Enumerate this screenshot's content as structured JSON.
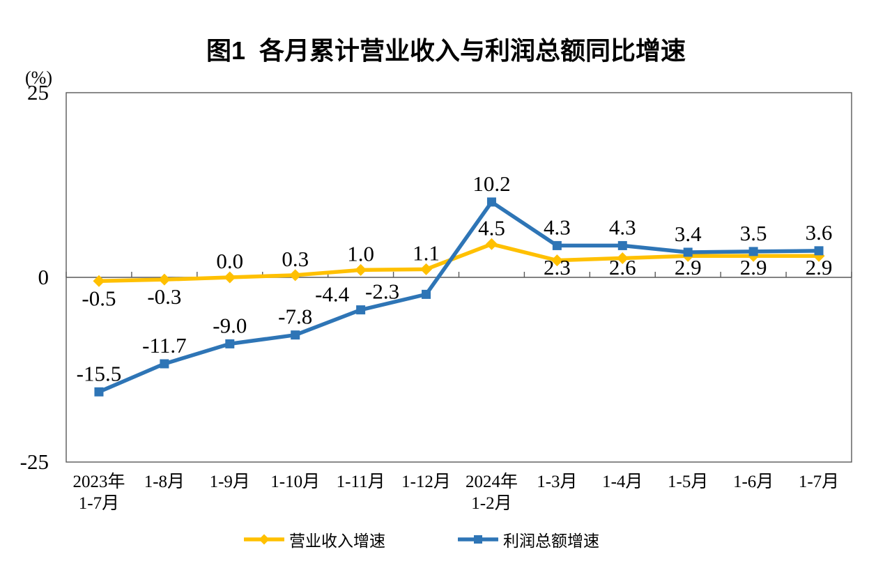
{
  "chart_data": {
    "type": "line",
    "title": "图1  各月累计营业收入与利润总额同比增速",
    "ylabel": "(%)",
    "ylim": [
      -25,
      25
    ],
    "grid": false,
    "legend_position": "bottom",
    "axis_color": "#595959",
    "y_ticks": [
      {
        "value": 25,
        "label": "25"
      },
      {
        "value": 0,
        "label": "0"
      },
      {
        "value": -25,
        "label": "-25"
      }
    ],
    "categories": [
      [
        "2023年",
        "1-7月"
      ],
      [
        "1-8月"
      ],
      [
        "1-9月"
      ],
      [
        "1-10月"
      ],
      [
        "1-11月"
      ],
      [
        "1-12月"
      ],
      [
        "2024年",
        "1-2月"
      ],
      [
        "1-3月"
      ],
      [
        "1-4月"
      ],
      [
        "1-5月"
      ],
      [
        "1-6月"
      ],
      [
        "1-7月"
      ]
    ],
    "series": [
      {
        "name": "营业收入增速",
        "color": "#FFC000",
        "marker": "diamond",
        "values": [
          -0.5,
          -0.3,
          0.0,
          0.3,
          1.0,
          1.1,
          4.5,
          2.3,
          2.6,
          2.9,
          2.9,
          2.9
        ],
        "labels": [
          "-0.5",
          "-0.3",
          "0.0",
          "0.3",
          "1.0",
          "1.1",
          "4.5",
          "2.3",
          "2.6",
          "2.9",
          "2.9",
          "2.9"
        ],
        "label_positions": [
          "below",
          "below",
          "above",
          "above",
          "above",
          "above",
          "above",
          "below",
          "below",
          "below",
          "below",
          "below"
        ],
        "label_offsets": {}
      },
      {
        "name": "利润总额增速",
        "color": "#2E75B6",
        "marker": "square",
        "values": [
          -15.5,
          -11.7,
          -9.0,
          -7.8,
          -4.4,
          -2.3,
          10.2,
          4.3,
          4.3,
          3.4,
          3.5,
          3.6
        ],
        "labels": [
          "-15.5",
          "-11.7",
          "-9.0",
          "-7.8",
          "-4.4",
          "-2.3",
          "10.2",
          "4.3",
          "4.3",
          "3.4",
          "3.5",
          "3.6"
        ],
        "label_positions": [
          "above",
          "above",
          "above",
          "above",
          "above",
          "above",
          "above",
          "above",
          "above",
          "above",
          "above",
          "above"
        ],
        "label_offsets": {
          "4": [
            -41,
            4
          ],
          "5": [
            -63,
            22
          ]
        }
      }
    ]
  }
}
